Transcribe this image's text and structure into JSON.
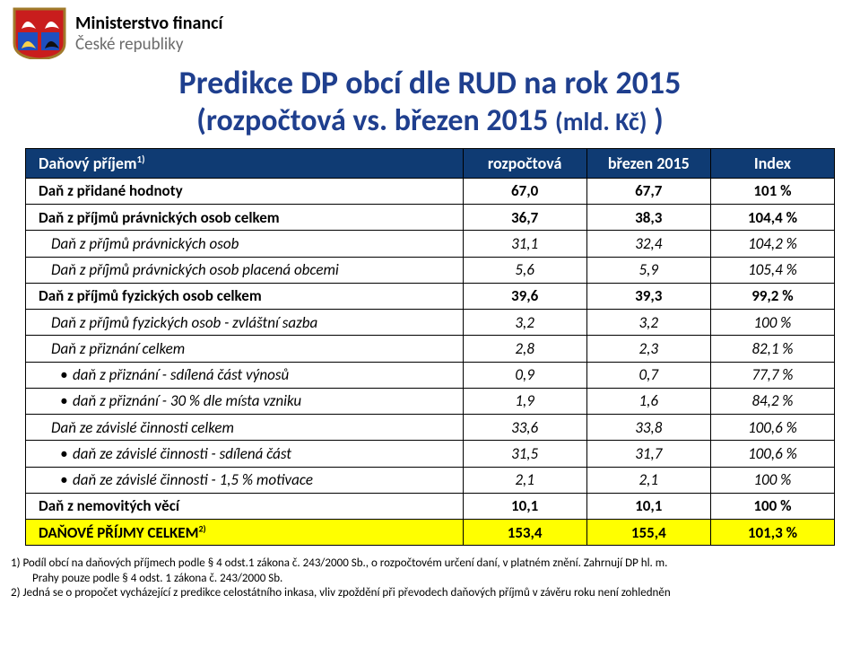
{
  "header": {
    "line1": "Ministerstvo financí",
    "line2": "České republiky"
  },
  "title": {
    "line1": "Predikce DP obcí dle RUD na rok 2015",
    "line2_open": "(rozpočtová vs. březen 2015 ",
    "line2_sub": "(mld. Kč)",
    "line2_close": " )"
  },
  "table": {
    "header": {
      "c0": "Daňový příjem",
      "c0_sup": "1)",
      "c1": "rozpočtová",
      "c2": "březen 2015",
      "c3": "Index"
    },
    "rows": [
      {
        "cls": "bold solidtop",
        "pad": "pad1",
        "label": "Daň z přidané hodnoty",
        "v1": "67,0",
        "v2": "67,7",
        "v3": "101 %"
      },
      {
        "cls": "bold solidtop",
        "pad": "pad1",
        "label": "Daň z příjmů právnických osob celkem",
        "v1": "36,7",
        "v2": "38,3",
        "v3": "104,4 %"
      },
      {
        "cls": "ital dashed",
        "pad": "pad2",
        "label": "Daň z příjmů právnických osob",
        "v1": "31,1",
        "v2": "32,4",
        "v3": "104,2 %"
      },
      {
        "cls": "ital dashed",
        "pad": "pad2",
        "label": "Daň z příjmů právnických osob placená obcemi",
        "v1": "5,6",
        "v2": "5,9",
        "v3": "105,4 %"
      },
      {
        "cls": "bold solidtop",
        "pad": "pad1",
        "label": "Daň z příjmů fyzických osob celkem",
        "v1": "39,6",
        "v2": "39,3",
        "v3": "99,2 %"
      },
      {
        "cls": "ital dashed",
        "pad": "pad2",
        "label": "Daň z příjmů fyzických osob - zvláštní sazba",
        "v1": "3,2",
        "v2": "3,2",
        "v3": "100 %"
      },
      {
        "cls": "ital dashed",
        "pad": "pad2",
        "label": "Daň z přiznání celkem",
        "v1": "2,8",
        "v2": "2,3",
        "v3": "82,1 %"
      },
      {
        "cls": "ital dashed",
        "pad": "pad3",
        "bullet": true,
        "label": "daň z přiznání - sdílená část výnosů",
        "v1": "0,9",
        "v2": "0,7",
        "v3": "77,7 %"
      },
      {
        "cls": "ital dashed",
        "pad": "pad3",
        "bullet": true,
        "label": "daň z přiznání - 30 % dle místa vzniku",
        "v1": "1,9",
        "v2": "1,6",
        "v3": "84,2 %"
      },
      {
        "cls": "ital dashed",
        "pad": "pad2",
        "label": "Daň ze závislé činnosti celkem",
        "v1": "33,6",
        "v2": "33,8",
        "v3": "100,6 %"
      },
      {
        "cls": "ital dashed",
        "pad": "pad3",
        "bullet": true,
        "label": "daň ze závislé činnosti - sdílená část",
        "v1": "31,5",
        "v2": "31,7",
        "v3": "100,6 %"
      },
      {
        "cls": "ital dashed",
        "pad": "pad3",
        "bullet": true,
        "label": "daň ze závislé činnosti - 1,5 % motivace",
        "v1": "2,1",
        "v2": "2,1",
        "v3": "100 %"
      },
      {
        "cls": "bold solidtop",
        "pad": "pad1",
        "label": "Daň z nemovitých věcí",
        "v1": "10,1",
        "v2": "10,1",
        "v3": "100 %"
      },
      {
        "cls": "summary solidtop",
        "pad": "pad1",
        "label": "DAŇOVÉ PŘÍJMY CELKEM",
        "sup": "2)",
        "v1": "153,4",
        "v2": "155,4",
        "v3": "101,3 %"
      }
    ]
  },
  "footnotes": {
    "f1": "1) Podíl obcí na daňových příjmech podle § 4 odst.1 zákona č. 243/2000 Sb., o rozpočtovém určení daní, v platném znění. Zahrnují DP hl. m.",
    "f1b": "Prahy pouze podle § 4 odst. 1 zákona č. 243/2000 Sb.",
    "f2": "2) Jedná se o propočet vycházející z predikce celostátního inkasa, vliv zpoždění při převodech daňových příjmů v závěru roku není zohledněn"
  },
  "colors": {
    "title": "#1f3f8e",
    "thead_bg": "#0f3b73",
    "thead_fg": "#ffffff",
    "summary_bg": "#ffff00",
    "border": "#000000"
  }
}
